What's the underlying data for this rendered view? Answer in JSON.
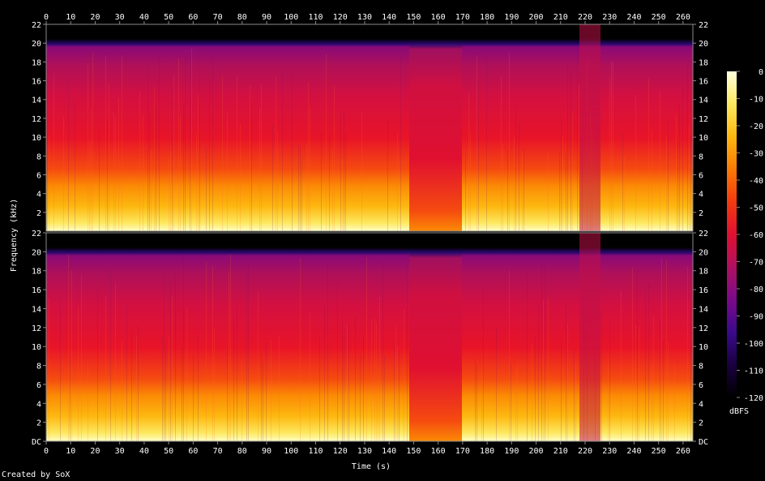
{
  "chart_data": {
    "type": "heatmap",
    "title": "",
    "xlabel": "Time (s)",
    "ylabel": "Frequency (kHz)",
    "x_ticks": [
      "0",
      "10",
      "20",
      "30",
      "40",
      "50",
      "60",
      "70",
      "80",
      "90",
      "100",
      "110",
      "120",
      "130",
      "140",
      "150",
      "160",
      "170",
      "180",
      "190",
      "200",
      "210",
      "220",
      "230",
      "240",
      "250",
      "260"
    ],
    "y_ticks_left": [
      "DC",
      "2",
      "4",
      "6",
      "8",
      "10",
      "12",
      "14",
      "16",
      "18",
      "20",
      "22"
    ],
    "y_ticks_right": [
      "DC",
      "2",
      "4",
      "6",
      "8",
      "10",
      "12",
      "14",
      "16",
      "18",
      "20",
      "22"
    ],
    "xlim": [
      0,
      264
    ],
    "ylim": [
      0,
      22
    ],
    "channels": 2,
    "colorbar": {
      "label": "dBFS",
      "ticks": [
        "0",
        "-10",
        "-20",
        "-30",
        "-40",
        "-50",
        "-60",
        "-70",
        "-80",
        "-90",
        "-100",
        "-110",
        "-120"
      ],
      "range": [
        -120,
        0
      ],
      "colors": [
        "#000000",
        "#1a0040",
        "#3a0a8c",
        "#7a0a8a",
        "#b01060",
        "#e01030",
        "#f53a10",
        "#fb7a05",
        "#fdb810",
        "#fde860",
        "#ffffe0"
      ]
    },
    "notes": "Spectrogram energy: bright below ~6 kHz, red/magenta mid-band, cutoff near 20 kHz; sparse section 148-170 s; dropout near 215-230 s"
  },
  "footer": {
    "credit": "Created by SoX"
  }
}
